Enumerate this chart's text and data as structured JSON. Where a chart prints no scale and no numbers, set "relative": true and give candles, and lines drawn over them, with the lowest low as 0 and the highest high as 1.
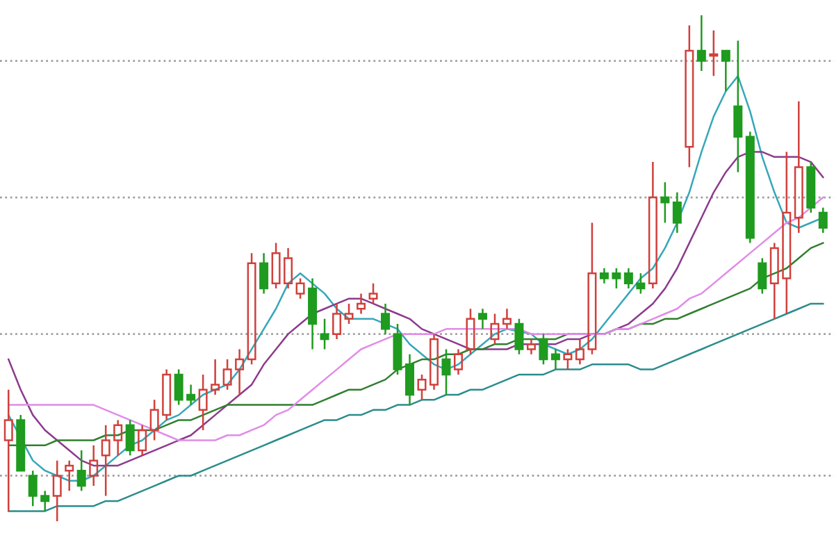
{
  "chart_data": {
    "type": "candlestick",
    "relative": true,
    "categories": [
      null,
      null,
      null,
      null,
      null,
      null,
      null,
      null,
      null,
      null,
      null,
      null,
      null,
      null,
      null,
      null,
      null,
      null,
      null,
      null,
      null,
      null,
      null,
      null,
      null,
      null,
      null,
      null,
      null,
      null,
      null,
      null,
      null,
      null,
      null,
      null,
      null,
      null,
      null,
      null,
      null,
      null,
      null,
      null,
      null,
      null,
      null,
      null,
      null,
      null,
      null,
      null,
      null,
      null,
      null,
      null,
      null,
      null,
      null,
      null,
      null,
      null,
      null,
      null,
      null,
      null,
      null,
      null
    ],
    "ohlc": [
      [
        0.16,
        0.26,
        0.02,
        0.2
      ],
      [
        0.2,
        0.21,
        0.1,
        0.1
      ],
      [
        0.09,
        0.1,
        0.03,
        0.05
      ],
      [
        0.05,
        0.06,
        0.02,
        0.04
      ],
      [
        0.05,
        0.12,
        0,
        0.09
      ],
      [
        0.1,
        0.12,
        0.06,
        0.11
      ],
      [
        0.1,
        0.14,
        0.06,
        0.07
      ],
      [
        0.09,
        0.15,
        0.07,
        0.12
      ],
      [
        0.13,
        0.19,
        0.05,
        0.16
      ],
      [
        0.16,
        0.2,
        0.13,
        0.19
      ],
      [
        0.19,
        0.2,
        0.13,
        0.14
      ],
      [
        0.14,
        0.19,
        0.13,
        0.18
      ],
      [
        0.18,
        0.24,
        0.16,
        0.22
      ],
      [
        0.21,
        0.3,
        0.2,
        0.29
      ],
      [
        0.29,
        0.3,
        0.23,
        0.24
      ],
      [
        0.25,
        0.27,
        0.23,
        0.24
      ],
      [
        0.22,
        0.29,
        0.18,
        0.26
      ],
      [
        0.26,
        0.32,
        0.25,
        0.27
      ],
      [
        0.27,
        0.32,
        0.26,
        0.3
      ],
      [
        0.3,
        0.34,
        0.25,
        0.32
      ],
      [
        0.32,
        0.53,
        0.31,
        0.51
      ],
      [
        0.51,
        0.53,
        0.45,
        0.46
      ],
      [
        0.47,
        0.55,
        0.46,
        0.53
      ],
      [
        0.47,
        0.54,
        0.46,
        0.52
      ],
      [
        0.45,
        0.48,
        0.44,
        0.47
      ],
      [
        0.46,
        0.48,
        0.34,
        0.39
      ],
      [
        0.37,
        0.4,
        0.34,
        0.36
      ],
      [
        0.37,
        0.43,
        0.36,
        0.41
      ],
      [
        0.4,
        0.43,
        0.39,
        0.41
      ],
      [
        0.42,
        0.45,
        0.41,
        0.43
      ],
      [
        0.44,
        0.47,
        0.43,
        0.45
      ],
      [
        0.41,
        0.43,
        0.37,
        0.38
      ],
      [
        0.37,
        0.39,
        0.29,
        0.3
      ],
      [
        0.31,
        0.33,
        0.23,
        0.25
      ],
      [
        0.26,
        0.29,
        0.24,
        0.28
      ],
      [
        0.27,
        0.37,
        0.26,
        0.36
      ],
      [
        0.32,
        0.34,
        0.25,
        0.29
      ],
      [
        0.3,
        0.34,
        0.29,
        0.33
      ],
      [
        0.34,
        0.42,
        0.33,
        0.4
      ],
      [
        0.41,
        0.42,
        0.38,
        0.4
      ],
      [
        0.36,
        0.41,
        0.35,
        0.39
      ],
      [
        0.39,
        0.42,
        0.38,
        0.4
      ],
      [
        0.39,
        0.4,
        0.33,
        0.34
      ],
      [
        0.34,
        0.36,
        0.33,
        0.35
      ],
      [
        0.36,
        0.37,
        0.31,
        0.32
      ],
      [
        0.33,
        0.34,
        0.3,
        0.32
      ],
      [
        0.32,
        0.34,
        0.3,
        0.33
      ],
      [
        0.32,
        0.36,
        0.31,
        0.34
      ],
      [
        0.34,
        0.59,
        0.33,
        0.49
      ],
      [
        0.49,
        0.5,
        0.47,
        0.48
      ],
      [
        0.49,
        0.5,
        0.46,
        0.48
      ],
      [
        0.49,
        0.5,
        0.46,
        0.47
      ],
      [
        0.47,
        0.49,
        0.45,
        0.46
      ],
      [
        0.47,
        0.71,
        0.46,
        0.64
      ],
      [
        0.64,
        0.67,
        0.59,
        0.63
      ],
      [
        0.63,
        0.65,
        0.57,
        0.59
      ],
      [
        0.74,
        0.98,
        0.7,
        0.93
      ],
      [
        0.93,
        1,
        0.89,
        0.91
      ],
      [
        0.92,
        0.97,
        0.88,
        0.92
      ],
      [
        0.93,
        0.93,
        0.85,
        0.91
      ],
      [
        0.82,
        0.95,
        0.69,
        0.76
      ],
      [
        0.76,
        0.77,
        0.55,
        0.56
      ],
      [
        0.51,
        0.52,
        0.45,
        0.46
      ],
      [
        0.47,
        0.55,
        0.4,
        0.54
      ],
      [
        0.48,
        0.73,
        0.41,
        0.61
      ],
      [
        0.6,
        0.83,
        0.57,
        0.7
      ],
      [
        0.7,
        0.71,
        0.61,
        0.62
      ],
      [
        0.61,
        0.62,
        0.57,
        0.58
      ]
    ],
    "colors": [
      "#d0403c",
      "#1f9b1f",
      "#1f9b1f",
      "#1f9b1f",
      "#d0403c",
      "#d0403c",
      "#1f9b1f",
      "#d0403c",
      "#d0403c",
      "#d0403c",
      "#1f9b1f",
      "#d0403c",
      "#d0403c",
      "#d0403c",
      "#1f9b1f",
      "#1f9b1f",
      "#d0403c",
      "#d0403c",
      "#d0403c",
      "#d0403c",
      "#d0403c",
      "#1f9b1f",
      "#d0403c",
      "#d0403c",
      "#d0403c",
      "#1f9b1f",
      "#1f9b1f",
      "#d0403c",
      "#d0403c",
      "#d0403c",
      "#d0403c",
      "#1f9b1f",
      "#1f9b1f",
      "#1f9b1f",
      "#d0403c",
      "#d0403c",
      "#1f9b1f",
      "#d0403c",
      "#d0403c",
      "#1f9b1f",
      "#d0403c",
      "#d0403c",
      "#1f9b1f",
      "#d0403c",
      "#1f9b1f",
      "#1f9b1f",
      "#d0403c",
      "#d0403c",
      "#d0403c",
      "#1f9b1f",
      "#1f9b1f",
      "#1f9b1f",
      "#1f9b1f",
      "#d0403c",
      "#1f9b1f",
      "#1f9b1f",
      "#d0403c",
      "#1f9b1f",
      "#d0403c",
      "#1f9b1f",
      "#1f9b1f",
      "#1f9b1f",
      "#1f9b1f",
      "#d0403c",
      "#d0403c",
      "#d0403c",
      "#1f9b1f",
      "#1f9b1f"
    ],
    "series": [
      {
        "type": "line",
        "color": "#35a7b8",
        "values": [
          0.21,
          null,
          0.12,
          0.1,
          0.09,
          0.08,
          0.08,
          0.09,
          0.11,
          0.13,
          0.15,
          0.16,
          0.18,
          0.2,
          0.21,
          0.23,
          0.25,
          0.26,
          0.27,
          0.3,
          0.34,
          0.38,
          0.42,
          0.47,
          0.49,
          0.47,
          0.45,
          0.42,
          0.4,
          0.4,
          0.4,
          0.39,
          0.38,
          0.35,
          0.33,
          0.31,
          0.3,
          0.31,
          0.33,
          0.35,
          0.37,
          0.38,
          null,
          0.37,
          0.35,
          0.34,
          0.33,
          0.34,
          0.36,
          0.39,
          0.42,
          0.45,
          0.48,
          0.5,
          0.54,
          0.59,
          0.65,
          0.73,
          0.8,
          0.85,
          0.88,
          0.81,
          0.72,
          0.65,
          0.59,
          0.58,
          0.59,
          0.6
        ]
      },
      {
        "type": "line",
        "color": "#8c3a8c",
        "values": [
          0.32,
          0.26,
          0.21,
          0.18,
          0.16,
          0.14,
          0.12,
          0.11,
          0.11,
          0.11,
          0.12,
          0.13,
          0.14,
          0.15,
          0.16,
          0.17,
          0.19,
          0.21,
          0.23,
          0.25,
          0.27,
          0.31,
          0.34,
          0.37,
          0.39,
          0.41,
          0.42,
          0.43,
          0.44,
          0.44,
          0.43,
          0.42,
          0.41,
          0.4,
          0.38,
          0.37,
          0.36,
          0.35,
          0.34,
          0.34,
          0.34,
          0.34,
          0.35,
          0.35,
          0.35,
          0.35,
          0.36,
          0.36,
          0.37,
          0.37,
          0.38,
          0.39,
          0.41,
          0.43,
          0.46,
          0.5,
          0.55,
          0.6,
          0.65,
          0.69,
          0.72,
          0.73,
          0.73,
          0.72,
          0.72,
          0.72,
          0.71,
          0.68
        ]
      },
      {
        "type": "line",
        "color": "#2f7f2f",
        "values": [
          0.15,
          0.15,
          0.15,
          0.15,
          0.16,
          0.16,
          0.16,
          0.16,
          0.17,
          0.17,
          0.18,
          0.18,
          0.18,
          0.19,
          0.2,
          0.2,
          0.21,
          0.22,
          0.23,
          0.23,
          0.23,
          0.23,
          0.23,
          0.23,
          0.23,
          0.23,
          0.24,
          0.25,
          0.26,
          0.26,
          0.27,
          0.28,
          0.3,
          0.31,
          0.32,
          0.32,
          0.33,
          0.33,
          0.34,
          0.34,
          0.35,
          0.35,
          0.36,
          0.36,
          0.36,
          0.36,
          0.37,
          0.37,
          0.37,
          0.37,
          0.38,
          0.38,
          0.39,
          0.39,
          0.4,
          0.4,
          0.41,
          0.42,
          0.43,
          0.44,
          0.45,
          0.46,
          0.48,
          0.49,
          0.5,
          0.52,
          0.54,
          0.55
        ]
      },
      {
        "type": "line",
        "color": "#e08ce8",
        "values": [
          0.23,
          0.23,
          0.23,
          0.23,
          0.23,
          0.23,
          0.23,
          0.23,
          0.22,
          0.21,
          0.2,
          0.19,
          0.18,
          0.17,
          0.16,
          0.16,
          0.16,
          0.16,
          0.17,
          0.17,
          0.18,
          0.19,
          0.21,
          0.22,
          0.24,
          0.26,
          0.28,
          0.3,
          0.32,
          0.34,
          0.35,
          0.36,
          0.37,
          0.37,
          0.37,
          0.37,
          0.38,
          0.38,
          0.38,
          0.38,
          0.38,
          0.38,
          0.38,
          0.37,
          0.37,
          0.37,
          0.37,
          0.37,
          0.37,
          0.37,
          0.38,
          0.38,
          0.39,
          0.4,
          0.41,
          0.42,
          0.44,
          0.45,
          0.47,
          0.49,
          0.51,
          0.53,
          0.55,
          0.57,
          0.59,
          0.6,
          0.62,
          0.64
        ]
      },
      {
        "type": "line",
        "color": "#2a8c8c",
        "values": [
          0.02,
          0.02,
          0.02,
          0.02,
          0.03,
          0.03,
          0.03,
          0.03,
          0.04,
          0.04,
          0.05,
          0.06,
          0.07,
          0.08,
          0.09,
          0.09,
          0.1,
          0.11,
          0.12,
          0.13,
          0.14,
          0.15,
          0.16,
          0.17,
          0.18,
          0.19,
          0.2,
          0.2,
          0.21,
          0.21,
          0.22,
          0.22,
          0.23,
          0.23,
          0.24,
          0.24,
          0.25,
          0.25,
          0.26,
          0.26,
          0.27,
          0.28,
          0.29,
          0.29,
          0.29,
          0.3,
          0.3,
          0.3,
          0.31,
          0.31,
          0.31,
          0.31,
          0.3,
          0.3,
          0.31,
          0.32,
          0.33,
          0.34,
          0.35,
          0.36,
          0.37,
          0.38,
          0.39,
          0.4,
          0.41,
          0.42,
          0.43,
          0.43
        ]
      }
    ],
    "ref_lines": [
      {
        "axis": "y",
        "value": 0.91,
        "color": "#a0a0a0",
        "line_style": "dotted"
      },
      {
        "axis": "y",
        "value": 0.64,
        "color": "#a0a0a0",
        "line_style": "dotted"
      },
      {
        "axis": "y",
        "value": 0.37,
        "color": "#a0a0a0",
        "line_style": "dotted"
      },
      {
        "axis": "y",
        "value": 0.09,
        "color": "#a0a0a0",
        "line_style": "dotted"
      }
    ]
  }
}
